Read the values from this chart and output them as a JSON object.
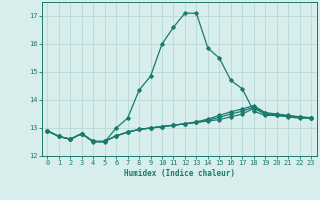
{
  "xlabel": "Humidex (Indice chaleur)",
  "background_color": "#d7eeed",
  "grid_color": "#b8d8d4",
  "line_color": "#1a7a6e",
  "xlim": [
    -0.5,
    23.5
  ],
  "ylim": [
    12.0,
    17.5
  ],
  "yticks": [
    12,
    13,
    14,
    15,
    16,
    17
  ],
  "xticks": [
    0,
    1,
    2,
    3,
    4,
    5,
    6,
    7,
    8,
    9,
    10,
    11,
    12,
    13,
    14,
    15,
    16,
    17,
    18,
    19,
    20,
    21,
    22,
    23
  ],
  "series": [
    {
      "x": [
        0,
        1,
        2,
        3,
        4,
        5,
        6,
        7,
        8,
        9,
        10,
        11,
        12,
        13,
        14,
        15,
        16,
        17,
        18,
        19,
        20,
        21,
        22,
        23
      ],
      "y": [
        12.9,
        12.7,
        12.6,
        12.8,
        12.5,
        12.5,
        13.0,
        13.35,
        14.35,
        14.85,
        16.0,
        16.6,
        17.1,
        17.1,
        15.85,
        15.5,
        14.7,
        14.4,
        13.6,
        13.45,
        13.45,
        13.4,
        13.35,
        13.35
      ]
    },
    {
      "x": [
        0,
        1,
        2,
        3,
        4,
        5,
        6,
        7,
        8,
        9,
        10,
        11,
        12,
        13,
        14,
        15,
        16,
        17,
        18,
        19,
        20,
        21,
        22,
        23
      ],
      "y": [
        12.9,
        12.7,
        12.6,
        12.8,
        12.52,
        12.52,
        12.72,
        12.85,
        12.95,
        13.0,
        13.05,
        13.1,
        13.15,
        13.2,
        13.25,
        13.3,
        13.4,
        13.5,
        13.7,
        13.5,
        13.45,
        13.42,
        13.38,
        13.35
      ]
    },
    {
      "x": [
        0,
        1,
        2,
        3,
        4,
        5,
        6,
        7,
        8,
        9,
        10,
        11,
        12,
        13,
        14,
        15,
        16,
        17,
        18,
        19,
        20,
        21,
        22,
        23
      ],
      "y": [
        12.9,
        12.7,
        12.6,
        12.8,
        12.52,
        12.52,
        12.72,
        12.85,
        12.95,
        13.0,
        13.05,
        13.1,
        13.15,
        13.2,
        13.28,
        13.38,
        13.5,
        13.6,
        13.75,
        13.52,
        13.47,
        13.43,
        13.39,
        13.36
      ]
    },
    {
      "x": [
        0,
        1,
        2,
        3,
        4,
        5,
        6,
        7,
        8,
        9,
        10,
        11,
        12,
        13,
        14,
        15,
        16,
        17,
        18,
        19,
        20,
        21,
        22,
        23
      ],
      "y": [
        12.9,
        12.7,
        12.6,
        12.8,
        12.52,
        12.52,
        12.72,
        12.85,
        12.95,
        13.0,
        13.05,
        13.1,
        13.15,
        13.22,
        13.32,
        13.45,
        13.58,
        13.68,
        13.8,
        13.55,
        13.5,
        13.45,
        13.4,
        13.37
      ]
    }
  ]
}
